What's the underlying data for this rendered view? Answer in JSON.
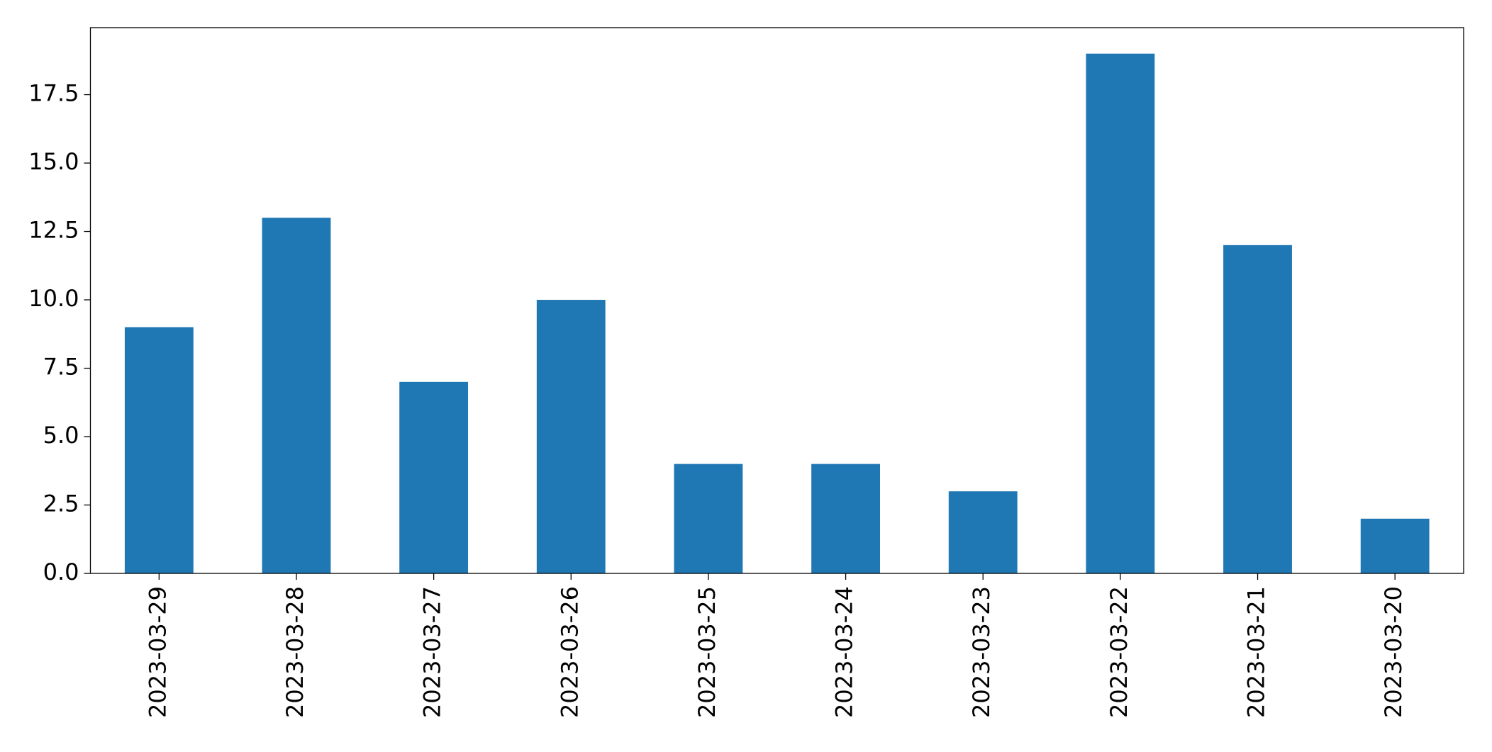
{
  "chart_data": {
    "type": "bar",
    "categories": [
      "2023-03-29",
      "2023-03-28",
      "2023-03-27",
      "2023-03-26",
      "2023-03-25",
      "2023-03-24",
      "2023-03-23",
      "2023-03-22",
      "2023-03-21",
      "2023-03-20"
    ],
    "values": [
      9,
      13,
      7,
      10,
      4,
      4,
      3,
      19,
      12,
      2
    ],
    "color": "#1f77b4",
    "ylim": [
      0,
      19.95
    ],
    "yticks": [
      {
        "value": 0,
        "label": "0.0"
      },
      2.5,
      {
        "value": 5,
        "label": "5.0"
      },
      7.5,
      {
        "value": 10,
        "label": "10.0"
      },
      12.5,
      {
        "value": 15,
        "label": "15.0"
      },
      17.5
    ],
    "grid": false
  }
}
